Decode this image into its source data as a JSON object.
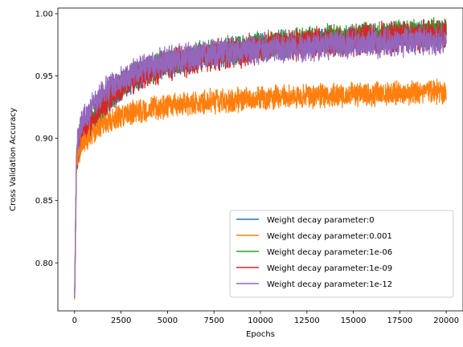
{
  "chart_data": {
    "type": "line",
    "xlabel": "Epochs",
    "ylabel": "Cross Validation Accuracy",
    "xlim": [
      -900,
      20900
    ],
    "ylim": [
      0.7615,
      1.0045
    ],
    "x_ticks": [
      0,
      2500,
      5000,
      7500,
      10000,
      12500,
      15000,
      17500,
      20000
    ],
    "x_tick_labels": [
      "0",
      "2500",
      "5000",
      "7500",
      "10000",
      "12500",
      "15000",
      "17500",
      "20000"
    ],
    "y_ticks": [
      0.8,
      0.85,
      0.9,
      0.95,
      1.0
    ],
    "y_tick_labels": [
      "0.80",
      "0.85",
      "0.90",
      "0.95",
      "1.00"
    ],
    "grid": false,
    "legend_position": "lower-right",
    "draw_order": [
      0,
      2,
      3,
      1,
      4
    ],
    "series": [
      {
        "name": "Weight decay parameter:0",
        "color": "#1f77b4",
        "x": [
          0,
          100,
          250,
          500,
          1000,
          2000,
          3000,
          5000,
          7500,
          10000,
          12500,
          15000,
          17500,
          20000
        ],
        "values": [
          0.77,
          0.88,
          0.895,
          0.905,
          0.915,
          0.935,
          0.947,
          0.96,
          0.968,
          0.973,
          0.977,
          0.98,
          0.982,
          0.984
        ],
        "noise": 0.013
      },
      {
        "name": "Weight decay parameter:0.001",
        "color": "#ff7f0e",
        "x": [
          0,
          100,
          250,
          500,
          1000,
          2000,
          3000,
          5000,
          7500,
          10000,
          12500,
          15000,
          17500,
          20000
        ],
        "values": [
          0.77,
          0.88,
          0.89,
          0.897,
          0.905,
          0.915,
          0.92,
          0.926,
          0.93,
          0.932,
          0.934,
          0.935,
          0.936,
          0.937
        ],
        "noise": 0.011
      },
      {
        "name": "Weight decay parameter:1e-06",
        "color": "#2ca02c",
        "x": [
          0,
          100,
          250,
          500,
          1000,
          2000,
          3000,
          5000,
          7500,
          10000,
          12500,
          15000,
          17500,
          20000
        ],
        "values": [
          0.77,
          0.88,
          0.895,
          0.905,
          0.917,
          0.936,
          0.948,
          0.961,
          0.969,
          0.974,
          0.978,
          0.981,
          0.983,
          0.985
        ],
        "noise": 0.013
      },
      {
        "name": "Weight decay parameter:1e-09",
        "color": "#d62728",
        "x": [
          0,
          100,
          250,
          500,
          1000,
          2000,
          3000,
          5000,
          7500,
          10000,
          12500,
          15000,
          17500,
          20000
        ],
        "values": [
          0.77,
          0.88,
          0.895,
          0.905,
          0.916,
          0.935,
          0.947,
          0.959,
          0.967,
          0.972,
          0.976,
          0.979,
          0.981,
          0.983
        ],
        "noise": 0.014
      },
      {
        "name": "Weight decay parameter:1e-12",
        "color": "#9467bd",
        "x": [
          0,
          100,
          250,
          500,
          1000,
          2000,
          3000,
          5000,
          7500,
          10000,
          12500,
          15000,
          17500,
          20000
        ],
        "values": [
          0.77,
          0.89,
          0.905,
          0.915,
          0.927,
          0.943,
          0.952,
          0.962,
          0.968,
          0.971,
          0.974,
          0.976,
          0.977,
          0.978
        ],
        "noise": 0.013
      }
    ]
  }
}
